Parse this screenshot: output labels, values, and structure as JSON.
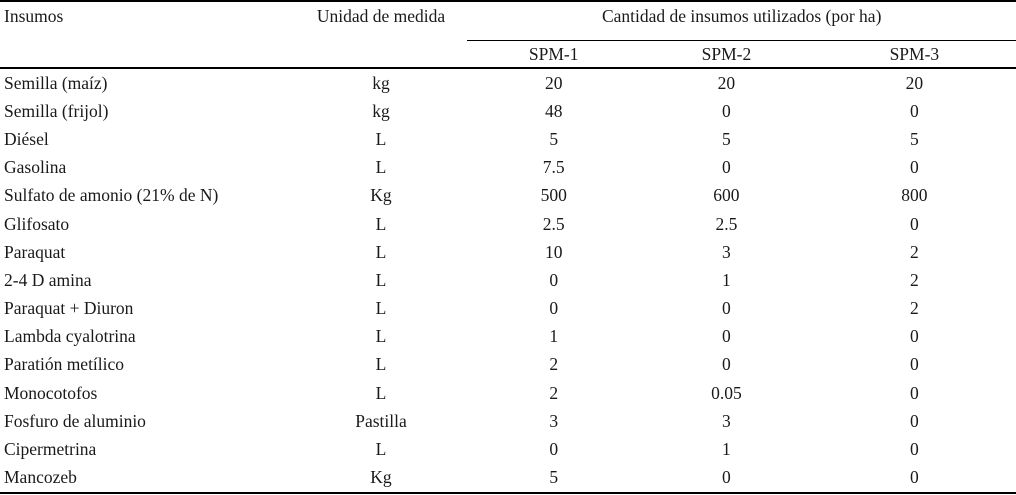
{
  "table": {
    "headers": {
      "insumos": "Insumos",
      "unidad": "Unidad de medida",
      "group": "Cantidad de insumos utilizados (por ha)",
      "spm1": "SPM-1",
      "spm2": "SPM-2",
      "spm3": "SPM-3"
    },
    "rows": [
      {
        "insumo": "Semilla (maíz)",
        "unidad": "kg",
        "spm1": "20",
        "spm2": "20",
        "spm3": "20"
      },
      {
        "insumo": "Semilla (frijol)",
        "unidad": "kg",
        "spm1": "48",
        "spm2": "0",
        "spm3": "0"
      },
      {
        "insumo": "Diésel",
        "unidad": "L",
        "spm1": "5",
        "spm2": "5",
        "spm3": "5"
      },
      {
        "insumo": "Gasolina",
        "unidad": "L",
        "spm1": "7.5",
        "spm2": "0",
        "spm3": "0"
      },
      {
        "insumo": "Sulfato de amonio (21% de N)",
        "unidad": "Kg",
        "spm1": "500",
        "spm2": "600",
        "spm3": "800"
      },
      {
        "insumo": "Glifosato",
        "unidad": "L",
        "spm1": "2.5",
        "spm2": "2.5",
        "spm3": "0"
      },
      {
        "insumo": "Paraquat",
        "unidad": "L",
        "spm1": "10",
        "spm2": "3",
        "spm3": "2"
      },
      {
        "insumo": "2-4 D amina",
        "unidad": "L",
        "spm1": "0",
        "spm2": "1",
        "spm3": "2"
      },
      {
        "insumo": "Paraquat + Diuron",
        "unidad": "L",
        "spm1": "0",
        "spm2": "0",
        "spm3": "2"
      },
      {
        "insumo": "Lambda cyalotrina",
        "unidad": "L",
        "spm1": "1",
        "spm2": "0",
        "spm3": "0"
      },
      {
        "insumo": "Paratión metílico",
        "unidad": "L",
        "spm1": "2",
        "spm2": "0",
        "spm3": "0"
      },
      {
        "insumo": "Monocotofos",
        "unidad": "L",
        "spm1": "2",
        "spm2": "0.05",
        "spm3": "0"
      },
      {
        "insumo": "Fosfuro de aluminio",
        "unidad": "Pastilla",
        "spm1": "3",
        "spm2": "3",
        "spm3": "0"
      },
      {
        "insumo": "Cipermetrina",
        "unidad": "L",
        "spm1": "0",
        "spm2": "1",
        "spm3": "0"
      },
      {
        "insumo": "Mancozeb",
        "unidad": "Kg",
        "spm1": "5",
        "spm2": "0",
        "spm3": "0"
      }
    ]
  },
  "colors": {
    "text": "#1a1a1a",
    "rule": "#000000",
    "background": "#ffffff"
  }
}
